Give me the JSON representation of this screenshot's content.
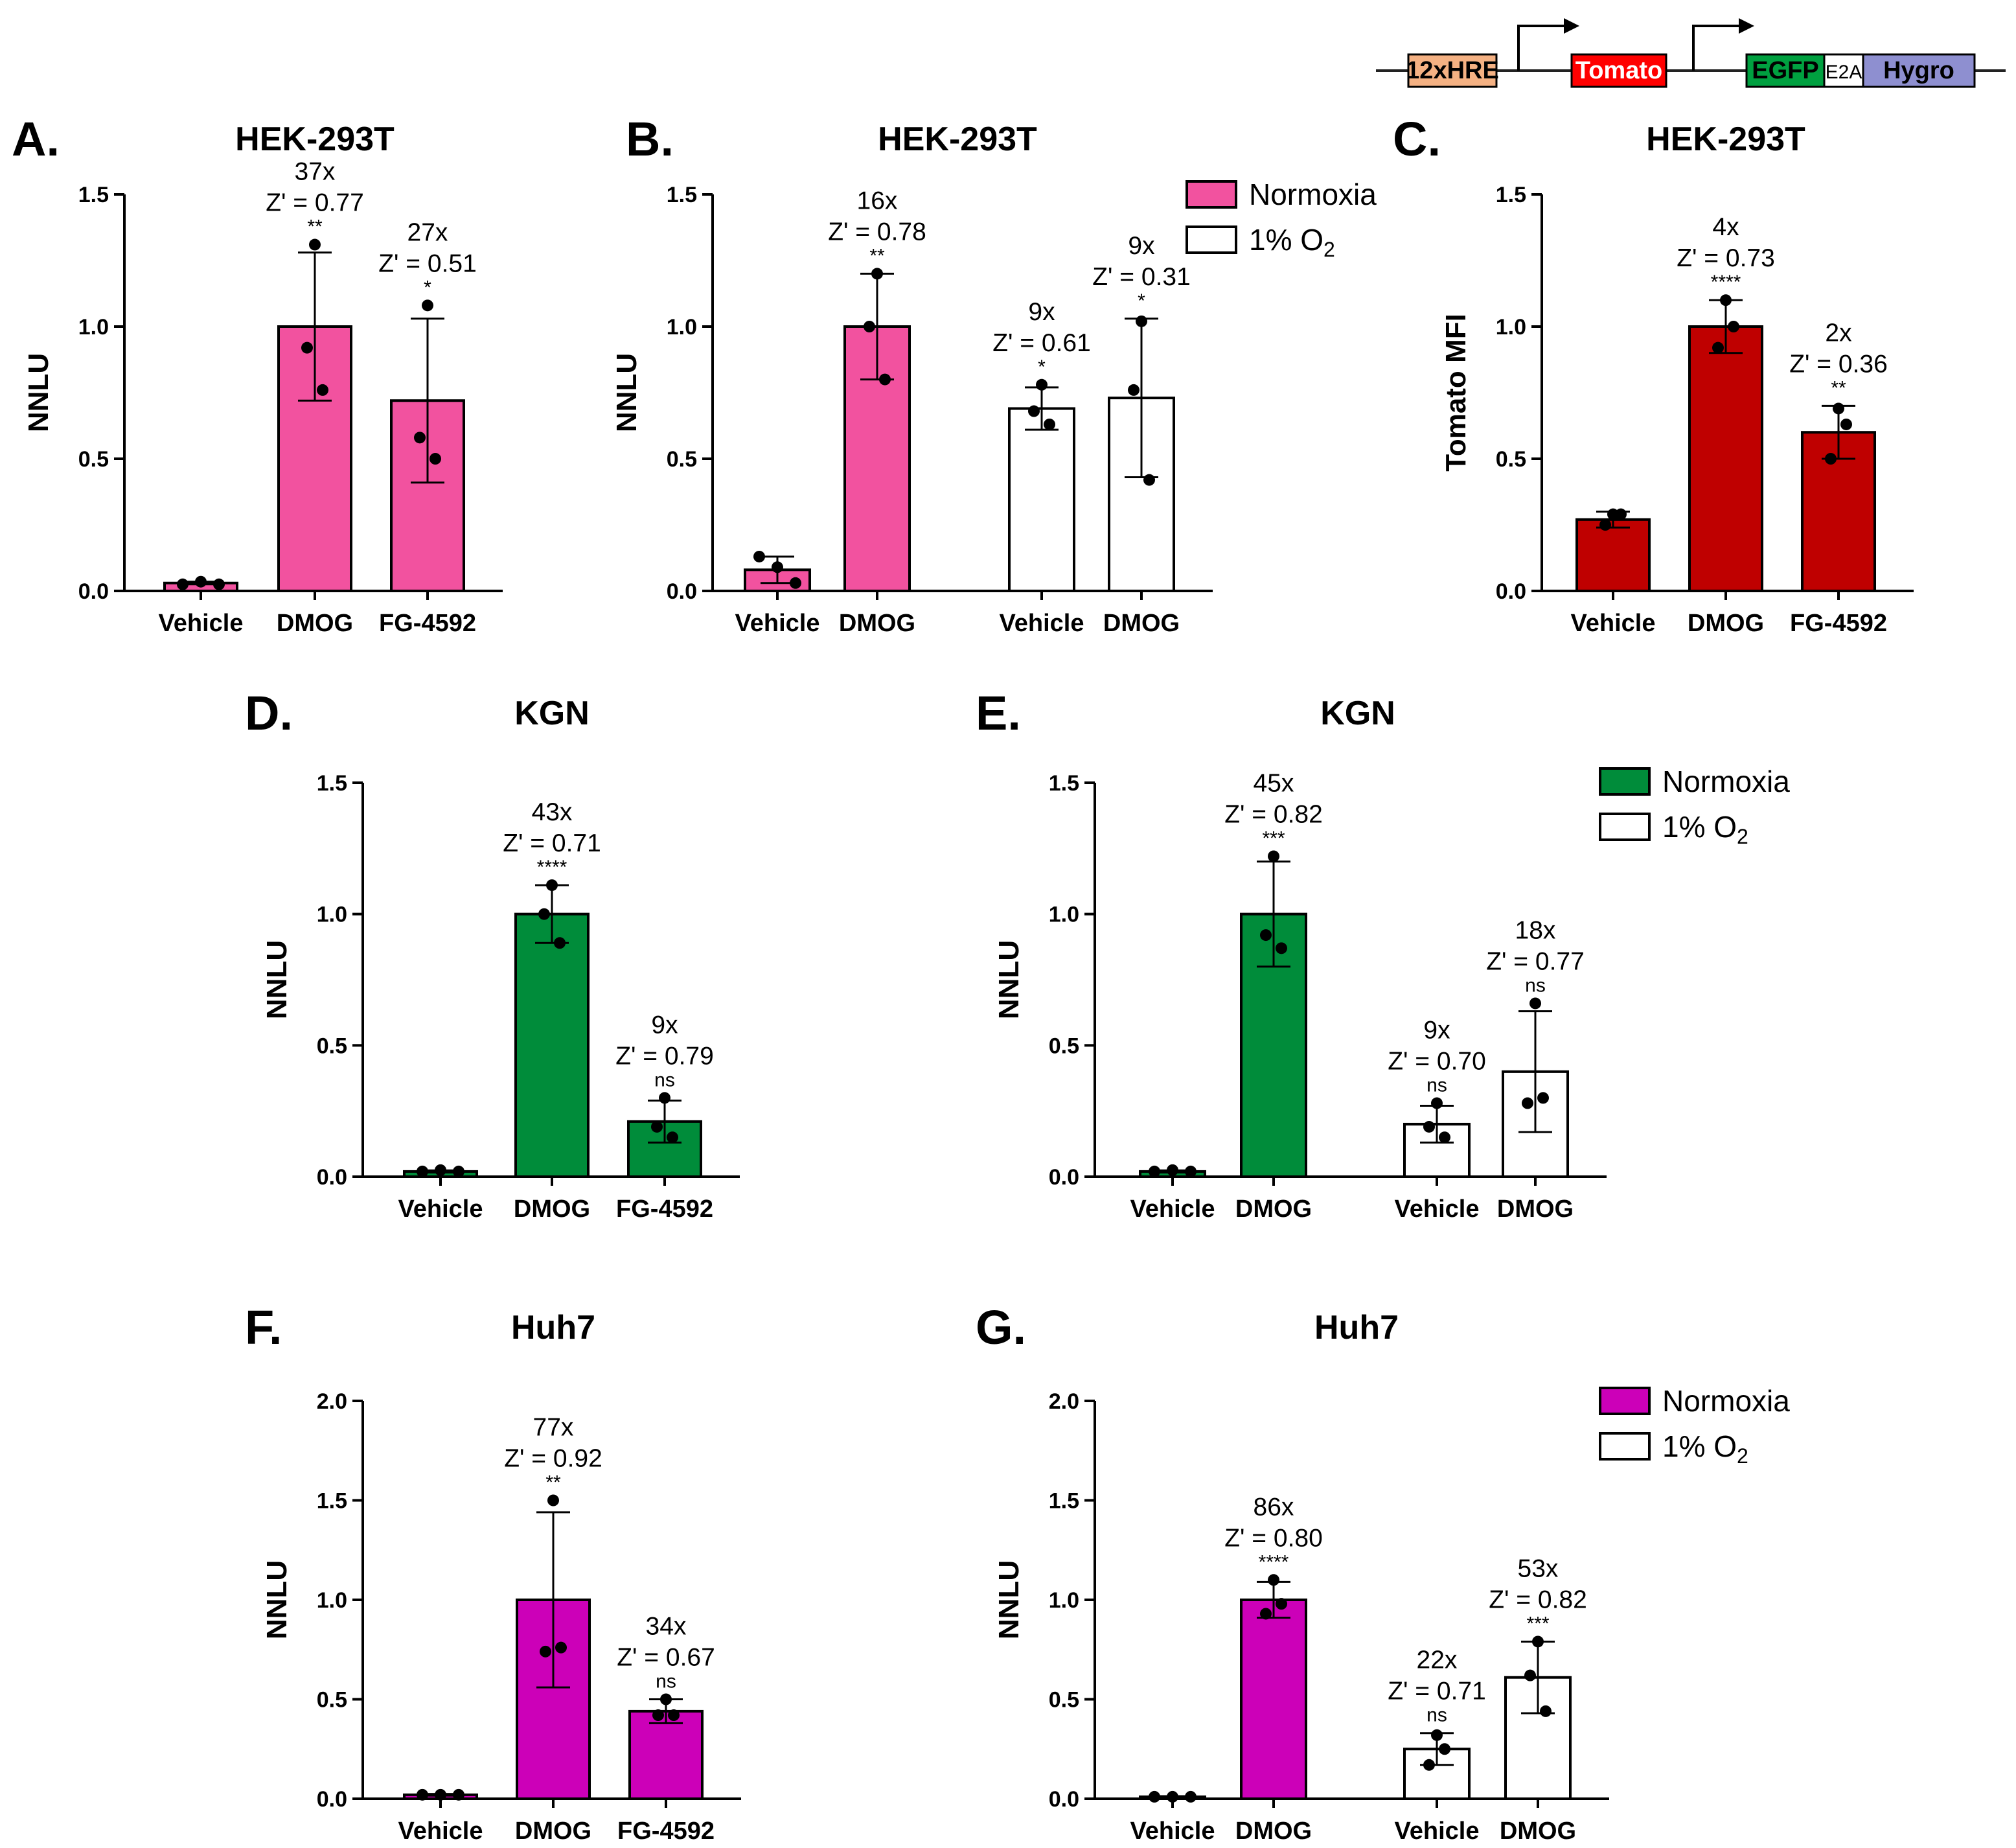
{
  "construct": {
    "elements": [
      {
        "label": "12xHRE",
        "fill": "#F4B183",
        "text_color": "#000000"
      },
      {
        "label": "Tomato",
        "fill": "#FF0000",
        "text_color": "#FFFFFF"
      },
      {
        "label": "EGFP",
        "fill": "#00A040",
        "text_color": "#000000"
      },
      {
        "label": "E2A",
        "fill": "#FFFFFF",
        "text_color": "#000000"
      },
      {
        "label": "Hygro",
        "fill": "#8E8FD0",
        "text_color": "#000000"
      }
    ]
  },
  "colors": {
    "pink": "#F2529F",
    "red": "#BF0000",
    "green": "#008C3A",
    "magenta": "#CC00B8",
    "white": "#FFFFFF"
  },
  "chart_data": [
    {
      "id": "A",
      "panel_label": "A.",
      "type": "bar",
      "title": "HEK-293T",
      "ylabel": "NNLU",
      "ylim": [
        0,
        1.5
      ],
      "yticks": [
        "0.0",
        "0.5",
        "1.0",
        "1.5"
      ],
      "categories": [
        "Vehicle",
        "DMOG",
        "FG-4592"
      ],
      "bars": [
        {
          "category": "Vehicle",
          "value": 0.03,
          "error": 0.005,
          "points": [
            0.025,
            0.035,
            0.025
          ],
          "fill": "#F2529F",
          "ann": []
        },
        {
          "category": "DMOG",
          "value": 1.0,
          "error": 0.28,
          "points": [
            1.31,
            0.92,
            0.76
          ],
          "fill": "#F2529F",
          "ann": [
            "37x",
            "Z' = 0.77",
            "**"
          ]
        },
        {
          "category": "FG-4592",
          "value": 0.72,
          "error": 0.31,
          "points": [
            1.08,
            0.58,
            0.5
          ],
          "fill": "#F2529F",
          "ann": [
            "27x",
            "Z' = 0.51",
            "*"
          ]
        }
      ]
    },
    {
      "id": "B",
      "panel_label": "B.",
      "type": "bar",
      "title": "HEK-293T",
      "ylabel": "NNLU",
      "ylim": [
        0,
        1.5
      ],
      "yticks": [
        "0.0",
        "0.5",
        "1.0",
        "1.5"
      ],
      "categories": [
        "Vehicle",
        "DMOG",
        "Vehicle",
        "DMOG"
      ],
      "legend": [
        {
          "name": "Normoxia",
          "fill": "#F2529F"
        },
        {
          "name": "1% O",
          "sub": "2",
          "fill": "#FFFFFF"
        }
      ],
      "bars": [
        {
          "category": "Vehicle",
          "value": 0.08,
          "error": 0.05,
          "points": [
            0.13,
            0.09,
            0.03
          ],
          "fill": "#F2529F",
          "ann": []
        },
        {
          "category": "DMOG",
          "value": 1.0,
          "error": 0.2,
          "points": [
            1.2,
            1.0,
            0.8
          ],
          "fill": "#F2529F",
          "ann": [
            "16x",
            "Z' = 0.78",
            "**"
          ]
        },
        {
          "category": "Vehicle",
          "value": 0.69,
          "error": 0.08,
          "points": [
            0.78,
            0.68,
            0.63
          ],
          "fill": "#FFFFFF",
          "ann": [
            "9x",
            "Z' = 0.61",
            "*"
          ]
        },
        {
          "category": "DMOG",
          "value": 0.73,
          "error": 0.3,
          "points": [
            1.02,
            0.76,
            0.42
          ],
          "fill": "#FFFFFF",
          "ann": [
            "9x",
            "Z' = 0.31",
            "*"
          ]
        }
      ]
    },
    {
      "id": "C",
      "panel_label": "C.",
      "type": "bar",
      "title": "HEK-293T",
      "ylabel": "Tomato MFI",
      "ylim": [
        0,
        1.5
      ],
      "yticks": [
        "0.0",
        "0.5",
        "1.0",
        "1.5"
      ],
      "categories": [
        "Vehicle",
        "DMOG",
        "FG-4592"
      ],
      "bars": [
        {
          "category": "Vehicle",
          "value": 0.27,
          "error": 0.03,
          "points": [
            0.29,
            0.25,
            0.29
          ],
          "fill": "#BF0000",
          "ann": []
        },
        {
          "category": "DMOG",
          "value": 1.0,
          "error": 0.1,
          "points": [
            1.1,
            0.92,
            1.0
          ],
          "fill": "#BF0000",
          "ann": [
            "4x",
            "Z' = 0.73",
            "****"
          ]
        },
        {
          "category": "FG-4592",
          "value": 0.6,
          "error": 0.1,
          "points": [
            0.69,
            0.5,
            0.63
          ],
          "fill": "#BF0000",
          "ann": [
            "2x",
            "Z' = 0.36",
            "**"
          ]
        }
      ]
    },
    {
      "id": "D",
      "panel_label": "D.",
      "type": "bar",
      "title": "KGN",
      "ylabel": "NNLU",
      "ylim": [
        0,
        1.5
      ],
      "yticks": [
        "0.0",
        "0.5",
        "1.0",
        "1.5"
      ],
      "categories": [
        "Vehicle",
        "DMOG",
        "FG-4592"
      ],
      "bars": [
        {
          "category": "Vehicle",
          "value": 0.02,
          "error": 0.004,
          "points": [
            0.02,
            0.025,
            0.02
          ],
          "fill": "#008C3A",
          "ann": []
        },
        {
          "category": "DMOG",
          "value": 1.0,
          "error": 0.11,
          "points": [
            1.11,
            1.0,
            0.89
          ],
          "fill": "#008C3A",
          "ann": [
            "43x",
            "Z' = 0.71",
            "****"
          ]
        },
        {
          "category": "FG-4592",
          "value": 0.21,
          "error": 0.08,
          "points": [
            0.3,
            0.19,
            0.15
          ],
          "fill": "#008C3A",
          "ann": [
            "9x",
            "Z' = 0.79",
            "ns"
          ]
        }
      ]
    },
    {
      "id": "E",
      "panel_label": "E.",
      "type": "bar",
      "title": "KGN",
      "ylabel": "NNLU",
      "ylim": [
        0,
        1.5
      ],
      "yticks": [
        "0.0",
        "0.5",
        "1.0",
        "1.5"
      ],
      "categories": [
        "Vehicle",
        "DMOG",
        "Vehicle",
        "DMOG"
      ],
      "legend": [
        {
          "name": "Normoxia",
          "fill": "#008C3A"
        },
        {
          "name": "1% O",
          "sub": "2",
          "fill": "#FFFFFF"
        }
      ],
      "bars": [
        {
          "category": "Vehicle",
          "value": 0.02,
          "error": 0.004,
          "points": [
            0.02,
            0.025,
            0.02
          ],
          "fill": "#008C3A",
          "ann": []
        },
        {
          "category": "DMOG",
          "value": 1.0,
          "error": 0.2,
          "points": [
            1.22,
            0.92,
            0.87
          ],
          "fill": "#008C3A",
          "ann": [
            "45x",
            "Z' = 0.82",
            "***"
          ]
        },
        {
          "category": "Vehicle",
          "value": 0.2,
          "error": 0.07,
          "points": [
            0.28,
            0.19,
            0.15
          ],
          "fill": "#FFFFFF",
          "ann": [
            "9x",
            "Z' = 0.70",
            "ns"
          ]
        },
        {
          "category": "DMOG",
          "value": 0.4,
          "error": 0.23,
          "points": [
            0.66,
            0.28,
            0.3
          ],
          "fill": "#FFFFFF",
          "ann": [
            "18x",
            "Z' = 0.77",
            "ns"
          ]
        }
      ]
    },
    {
      "id": "F",
      "panel_label": "F.",
      "type": "bar",
      "title": "Huh7",
      "ylabel": "NNLU",
      "ylim": [
        0,
        2.0
      ],
      "yticks": [
        "0.0",
        "0.5",
        "1.0",
        "1.5",
        "2.0"
      ],
      "categories": [
        "Vehicle",
        "DMOG",
        "FG-4592"
      ],
      "bars": [
        {
          "category": "Vehicle",
          "value": 0.02,
          "error": 0.004,
          "points": [
            0.02,
            0.02,
            0.02
          ],
          "fill": "#CC00B8",
          "ann": []
        },
        {
          "category": "DMOG",
          "value": 1.0,
          "error": 0.44,
          "points": [
            1.5,
            0.74,
            0.76
          ],
          "fill": "#CC00B8",
          "ann": [
            "77x",
            "Z' = 0.92",
            "**"
          ]
        },
        {
          "category": "FG-4592",
          "value": 0.44,
          "error": 0.06,
          "points": [
            0.5,
            0.42,
            0.42
          ],
          "fill": "#CC00B8",
          "ann": [
            "34x",
            "Z' = 0.67",
            "ns"
          ]
        }
      ]
    },
    {
      "id": "G",
      "panel_label": "G.",
      "type": "bar",
      "title": "Huh7",
      "ylabel": "NNLU",
      "ylim": [
        0,
        2.0
      ],
      "yticks": [
        "0.0",
        "0.5",
        "1.0",
        "1.5",
        "2.0"
      ],
      "categories": [
        "Vehicle",
        "DMOG",
        "Vehicle",
        "DMOG"
      ],
      "legend": [
        {
          "name": "Normoxia",
          "fill": "#CC00B8"
        },
        {
          "name": "1% O",
          "sub": "2",
          "fill": "#FFFFFF"
        }
      ],
      "bars": [
        {
          "category": "Vehicle",
          "value": 0.01,
          "error": 0.003,
          "points": [
            0.01,
            0.01,
            0.01
          ],
          "fill": "#CC00B8",
          "ann": []
        },
        {
          "category": "DMOG",
          "value": 1.0,
          "error": 0.09,
          "points": [
            1.1,
            0.93,
            0.98
          ],
          "fill": "#CC00B8",
          "ann": [
            "86x",
            "Z' = 0.80",
            "****"
          ]
        },
        {
          "category": "Vehicle",
          "value": 0.25,
          "error": 0.08,
          "points": [
            0.32,
            0.17,
            0.25
          ],
          "fill": "#FFFFFF",
          "ann": [
            "22x",
            "Z' = 0.71",
            "ns"
          ]
        },
        {
          "category": "DMOG",
          "value": 0.61,
          "error": 0.18,
          "points": [
            0.79,
            0.62,
            0.44
          ],
          "fill": "#FFFFFF",
          "ann": [
            "53x",
            "Z' = 0.82",
            "***"
          ]
        }
      ]
    }
  ]
}
